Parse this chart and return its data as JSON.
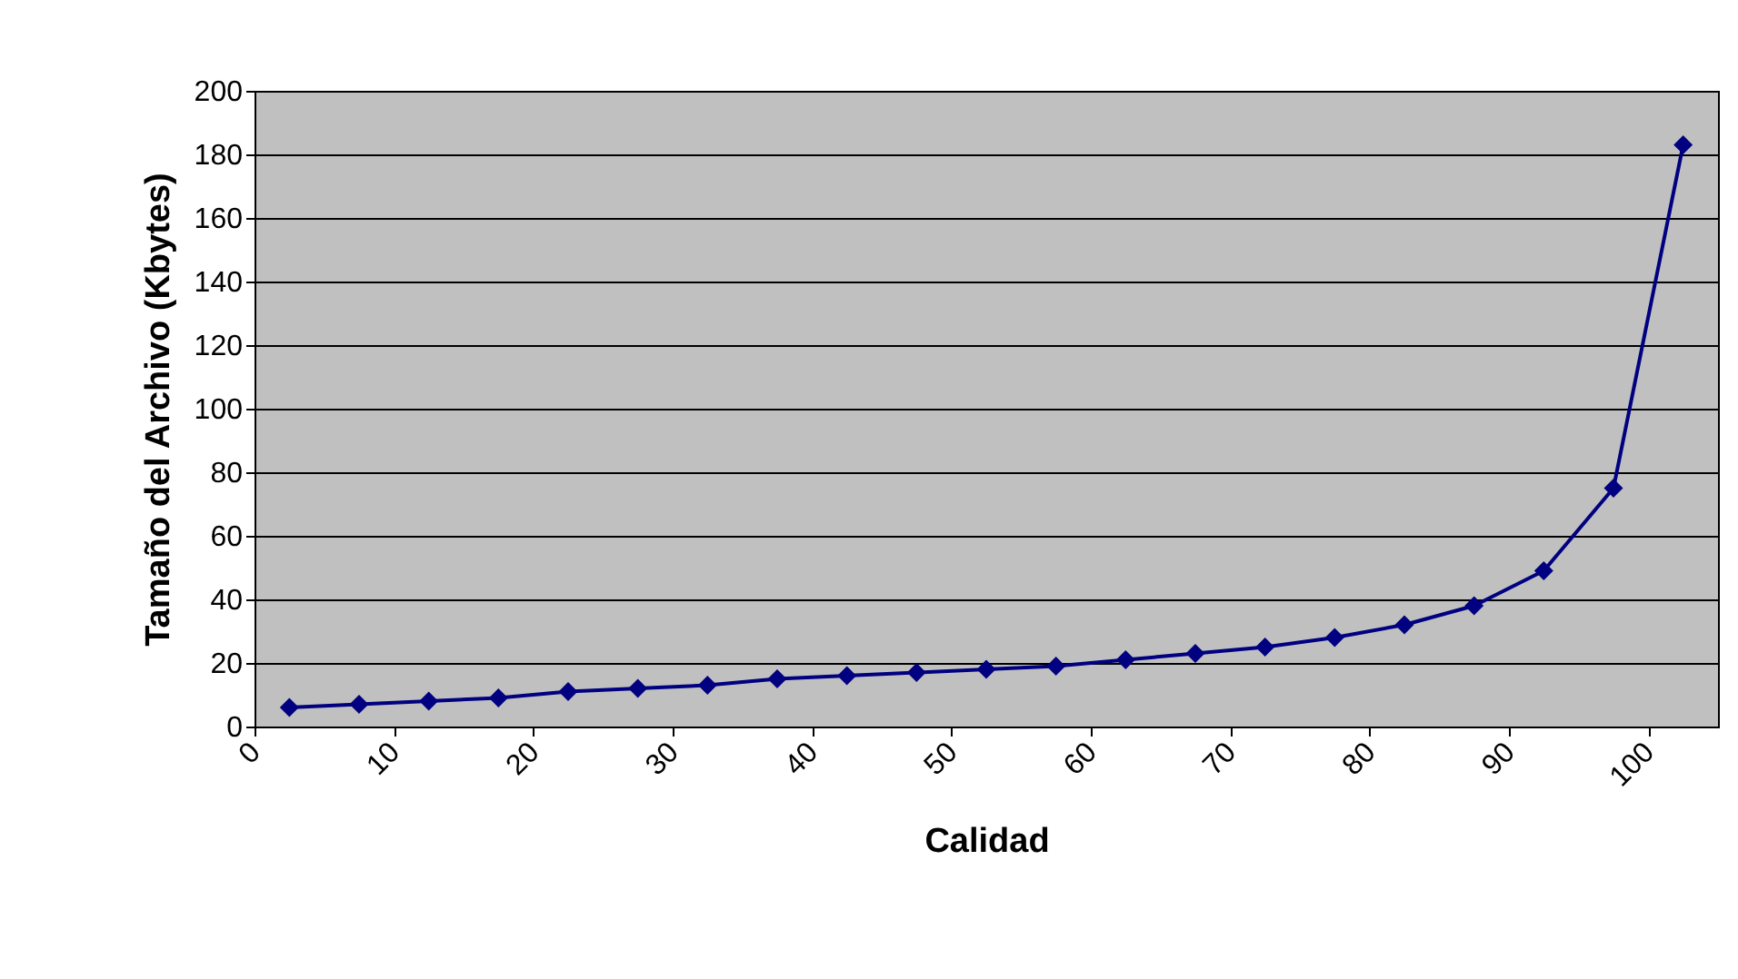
{
  "chart_data": {
    "type": "line",
    "xlabel": "Calidad",
    "ylabel": "Tamaño del Archivo (Kbytes)",
    "x": [
      2.5,
      7.5,
      12.5,
      17.5,
      22.5,
      27.5,
      32.5,
      37.5,
      42.5,
      47.5,
      52.5,
      57.5,
      62.5,
      67.5,
      72.5,
      77.5,
      82.5,
      87.5,
      92.5,
      97.5,
      102.5
    ],
    "series": [
      {
        "color": "#000080",
        "values": [
          6,
          7,
          8,
          9,
          11,
          12,
          13,
          15,
          16,
          17,
          18,
          19,
          21,
          23,
          25,
          28,
          32,
          38,
          49,
          75,
          183
        ]
      }
    ],
    "xlim": [
      0,
      105
    ],
    "xticks": [
      0,
      10,
      20,
      30,
      40,
      50,
      60,
      70,
      80,
      90,
      100
    ],
    "ylim": [
      0,
      200
    ],
    "yticks": [
      0,
      20,
      40,
      60,
      80,
      100,
      120,
      140,
      160,
      180,
      200
    ],
    "grid": "y",
    "marker": "diamond",
    "line_style": "solid",
    "legend": false
  }
}
